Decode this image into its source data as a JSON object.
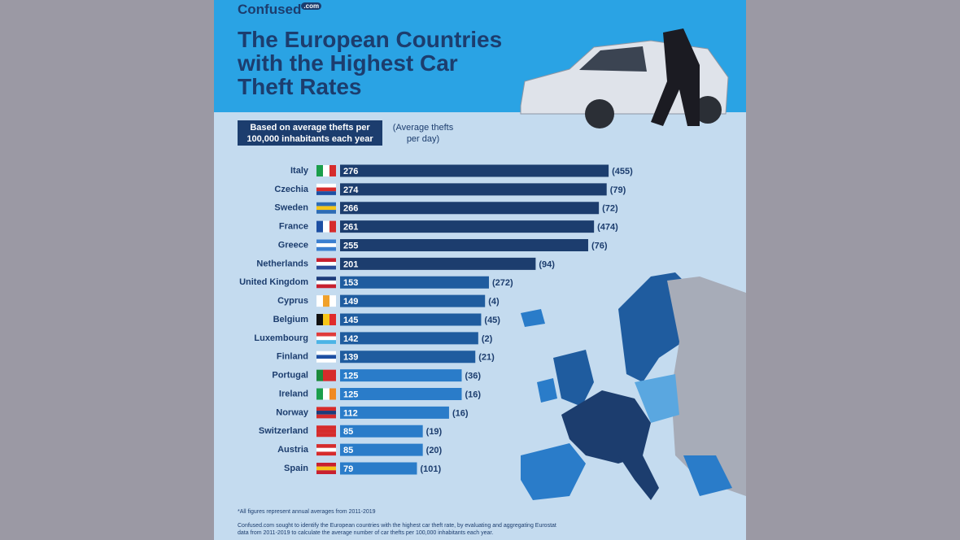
{
  "logo": {
    "name": "Confused",
    "badge": ".com"
  },
  "chart_data": {
    "type": "bar",
    "orientation": "horizontal",
    "title": "The European Countries with the Highest Car Theft Rates",
    "categories": [
      "Italy",
      "Czechia",
      "Sweden",
      "France",
      "Greece",
      "Netherlands",
      "United Kingdom",
      "Cyprus",
      "Belgium",
      "Luxembourg",
      "Finland",
      "Portugal",
      "Ireland",
      "Norway",
      "Switzerland",
      "Austria",
      "Spain"
    ],
    "series": [
      {
        "name": "Based on average thefts per 100,000 inhabitants each year",
        "values": [
          276,
          274,
          266,
          261,
          255,
          201,
          153,
          149,
          145,
          142,
          139,
          125,
          125,
          112,
          85,
          85,
          79
        ],
        "colors": [
          "#1c3d6e",
          "#1c3d6e",
          "#1c3d6e",
          "#1c3d6e",
          "#1c3d6e",
          "#1c3d6e",
          "#1f5c9f",
          "#1f5c9f",
          "#1f5c9f",
          "#1f5c9f",
          "#1f5c9f",
          "#2a7cc9",
          "#2a7cc9",
          "#2a7cc9",
          "#2a7cc9",
          "#2a7cc9",
          "#2a7cc9"
        ]
      },
      {
        "name": "(Average thefts per day)",
        "values": [
          455,
          79,
          72,
          474,
          76,
          94,
          272,
          4,
          45,
          2,
          21,
          36,
          16,
          16,
          19,
          20,
          101
        ],
        "value_labels": [
          "(455)",
          "(79)",
          "(72)",
          "(474)",
          "(76)",
          "(94)",
          "(272)",
          "(4)",
          "(45)",
          "(2)",
          "(21)",
          "(36)",
          "(16)",
          "(16)",
          "(19)",
          "(20)",
          "(101)"
        ]
      }
    ],
    "footnote": "*All figures represent annual averages from 2011-2019",
    "source": "Confused.com sought to identify the European countries with the highest car theft rate, by evaluating and aggregating Eurostat data from 2011-2019 to calculate the average number of car thefts per 100,000 inhabitants each year."
  }
}
